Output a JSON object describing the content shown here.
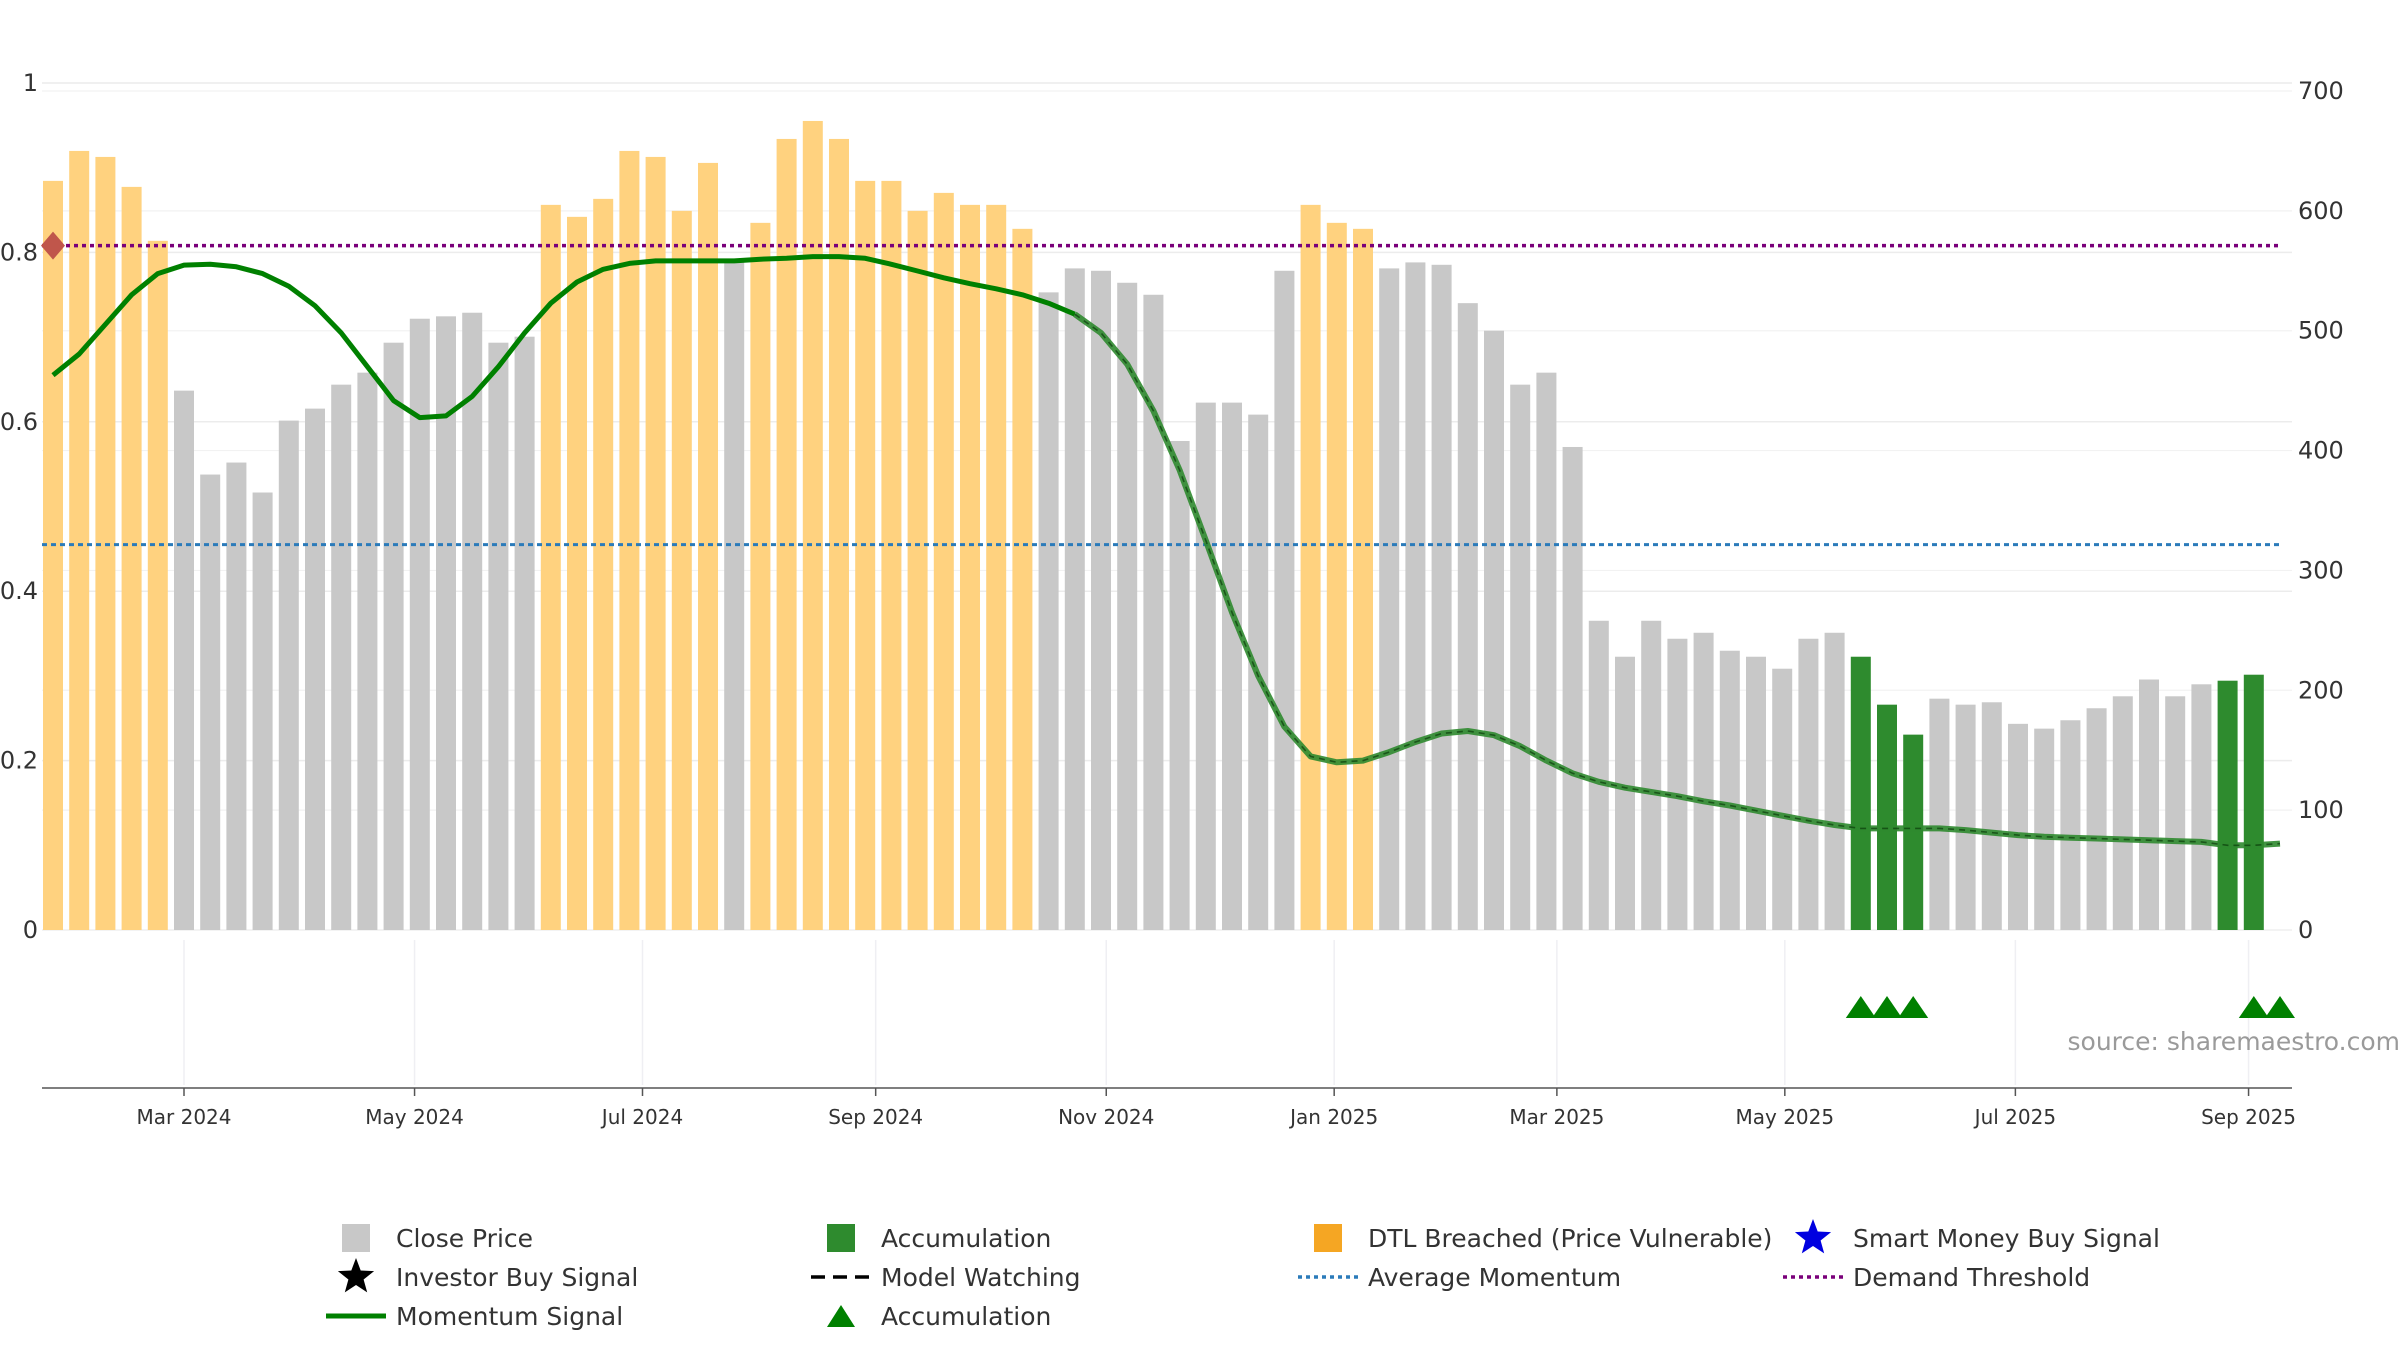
{
  "colors": {
    "close_price": "#c8c8c8",
    "accumulation": "#2e8b2e",
    "dtl_breached": "#ffd27f",
    "momentum": "#008000",
    "average_momentum": "#2b7bba",
    "demand_threshold": "#7a007a",
    "marker": "#c0564b",
    "triangle": "#008000",
    "smart_money": "#0000e0"
  },
  "source": "source: sharemaestro.com",
  "chart_data": {
    "type": "bar",
    "y_left": {
      "ylim": [
        0,
        1
      ],
      "ticks": [
        "0",
        "0.2",
        "0.4",
        "0.6",
        "0.8",
        "1"
      ],
      "values": [
        0,
        0.2,
        0.4,
        0.6,
        0.8,
        1
      ]
    },
    "y_right": {
      "ylim": [
        0,
        700
      ],
      "ticks": [
        "0",
        "100",
        "200",
        "300",
        "400",
        "500",
        "600",
        "700"
      ],
      "values": [
        0,
        100,
        200,
        300,
        400,
        500,
        600,
        700
      ]
    },
    "x_ticks": [
      "Mar 2024",
      "May 2024",
      "Jul 2024",
      "Sep 2024",
      "Nov 2024",
      "Jan 2025",
      "Mar 2025",
      "May 2025",
      "Jul 2025",
      "Sep 2025"
    ],
    "x_tick_bar_index": [
      5,
      13.8,
      22.5,
      31.4,
      40.2,
      48.9,
      57.4,
      66.1,
      74.9,
      83.8
    ],
    "bars": {
      "values": [
        625,
        650,
        645,
        620,
        575,
        450,
        380,
        390,
        365,
        425,
        435,
        455,
        465,
        490,
        510,
        512,
        515,
        490,
        495,
        605,
        595,
        610,
        650,
        645,
        600,
        640,
        558,
        590,
        660,
        675,
        660,
        625,
        625,
        600,
        615,
        605,
        605,
        585,
        532,
        552,
        550,
        540,
        530,
        408,
        440,
        440,
        430,
        550,
        605,
        590,
        585,
        552,
        557,
        555,
        523,
        500,
        455,
        465,
        403,
        258,
        228,
        258,
        243,
        248,
        233,
        228,
        218,
        243,
        248,
        228,
        188,
        163,
        193,
        188,
        190,
        172,
        168,
        175,
        185,
        195,
        209,
        195,
        205,
        208,
        213
      ],
      "states": [
        "dtl",
        "dtl",
        "dtl",
        "dtl",
        "dtl",
        "close",
        "close",
        "close",
        "close",
        "close",
        "close",
        "close",
        "close",
        "close",
        "close",
        "close",
        "close",
        "close",
        "close",
        "dtl",
        "dtl",
        "dtl",
        "dtl",
        "dtl",
        "dtl",
        "dtl",
        "close",
        "dtl",
        "dtl",
        "dtl",
        "dtl",
        "dtl",
        "dtl",
        "dtl",
        "dtl",
        "dtl",
        "dtl",
        "dtl",
        "close",
        "close",
        "close",
        "close",
        "close",
        "close",
        "close",
        "close",
        "close",
        "close",
        "dtl",
        "dtl",
        "dtl",
        "close",
        "close",
        "close",
        "close",
        "close",
        "close",
        "close",
        "close",
        "close",
        "close",
        "close",
        "close",
        "close",
        "close",
        "close",
        "close",
        "close",
        "close",
        "acc",
        "acc",
        "acc",
        "close",
        "close",
        "close",
        "close",
        "close",
        "close",
        "close",
        "close",
        "close",
        "close",
        "close",
        "acc",
        "acc"
      ]
    },
    "momentum": {
      "name": "Momentum Signal",
      "bar_index": [
        0,
        1,
        2,
        3,
        4,
        5,
        6,
        7,
        8,
        9,
        10,
        11,
        12,
        13,
        14,
        15,
        16,
        17,
        18,
        19,
        20,
        21,
        22,
        23,
        24,
        25,
        26,
        27,
        28,
        29,
        30,
        31,
        32,
        33,
        34,
        35,
        36,
        37,
        38,
        39,
        40,
        41,
        42,
        43,
        44,
        45,
        46,
        47,
        48,
        49,
        50,
        51,
        52,
        53,
        54,
        55,
        56,
        57,
        58,
        59,
        60,
        61,
        62,
        63,
        64,
        65,
        66,
        67,
        68,
        69,
        70,
        71,
        72,
        73,
        74,
        75,
        76,
        77,
        78,
        79,
        80,
        81,
        82,
        83,
        84,
        85
      ],
      "values": [
        0.655,
        0.68,
        0.715,
        0.75,
        0.775,
        0.785,
        0.786,
        0.783,
        0.775,
        0.76,
        0.737,
        0.705,
        0.665,
        0.625,
        0.605,
        0.607,
        0.63,
        0.665,
        0.705,
        0.74,
        0.765,
        0.78,
        0.787,
        0.79,
        0.79,
        0.79,
        0.79,
        0.792,
        0.793,
        0.795,
        0.795,
        0.793,
        0.786,
        0.778,
        0.77,
        0.763,
        0.757,
        0.75,
        0.74,
        0.727,
        0.705,
        0.668,
        0.613,
        0.543,
        0.46,
        0.375,
        0.3,
        0.24,
        0.205,
        0.198,
        0.2,
        0.21,
        0.222,
        0.232,
        0.235,
        0.23,
        0.217,
        0.2,
        0.185,
        0.175,
        0.168,
        0.163,
        0.158,
        0.152,
        0.147,
        0.141,
        0.135,
        0.129,
        0.124,
        0.12,
        0.12,
        0.12,
        0.12,
        0.118,
        0.115,
        0.112,
        0.11,
        0.109,
        0.108,
        0.107,
        0.106,
        0.105,
        0.104,
        0.1,
        0.1,
        0.102
      ],
      "watching_from_index": 39
    },
    "average_momentum": {
      "name": "Average Momentum",
      "value": 0.455
    },
    "demand_threshold": {
      "name": "Demand Threshold",
      "value": 0.808
    },
    "marker": {
      "bar_index": 0,
      "value": 0.808
    },
    "accumulation_triangles": {
      "bar_index": [
        69,
        70,
        71,
        84,
        85
      ]
    },
    "legend": [
      {
        "label": "Close Price",
        "icon": "gray-square"
      },
      {
        "label": "Accumulation",
        "icon": "green-square"
      },
      {
        "label": "DTL Breached (Price Vulnerable)",
        "icon": "orange-square"
      },
      {
        "label": "Smart Money Buy Signal",
        "icon": "blue-star"
      },
      {
        "label": "Investor Buy Signal",
        "icon": "black-star"
      },
      {
        "label": "Model Watching",
        "icon": "dashed-line"
      },
      {
        "label": "Average Momentum",
        "icon": "blue-dotted-line"
      },
      {
        "label": "Demand Threshold",
        "icon": "purple-dotted-line"
      },
      {
        "label": "Momentum Signal",
        "icon": "green-line"
      },
      {
        "label": "Accumulation",
        "icon": "green-triangle"
      }
    ],
    "legend_placement": "bottom",
    "grid": true
  }
}
